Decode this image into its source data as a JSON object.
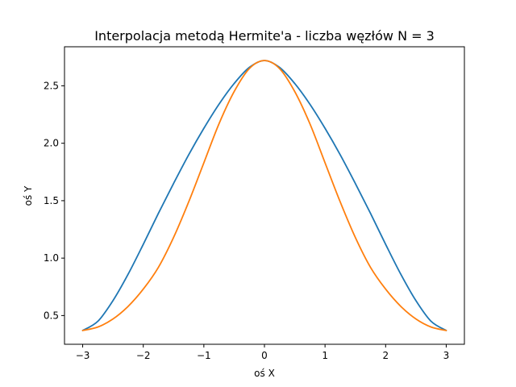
{
  "chart_data": {
    "type": "line",
    "title": "Interpolacja metodą Hermite'a - liczba węzłów N = 3",
    "xlabel": "oś X",
    "ylabel": "oś Y",
    "xlim": [
      -3.3,
      3.3
    ],
    "ylim": [
      0.25,
      2.84
    ],
    "xticks": [
      {
        "value": -3,
        "label": "−3"
      },
      {
        "value": -2,
        "label": "−2"
      },
      {
        "value": -1,
        "label": "−1"
      },
      {
        "value": 0,
        "label": "0"
      },
      {
        "value": 1,
        "label": "1"
      },
      {
        "value": 2,
        "label": "2"
      },
      {
        "value": 3,
        "label": "3"
      }
    ],
    "yticks": [
      {
        "value": 0.5,
        "label": "0.5"
      },
      {
        "value": 1.0,
        "label": "1.0"
      },
      {
        "value": 1.5,
        "label": "1.5"
      },
      {
        "value": 2.0,
        "label": "2.0"
      },
      {
        "value": 2.5,
        "label": "2.5"
      }
    ],
    "grid": false,
    "legend": "none",
    "series": [
      {
        "color": "#1f77b4",
        "x": [
          -3,
          -2.75,
          -2.5,
          -2.25,
          -2,
          -1.75,
          -1.5,
          -1.25,
          -1,
          -0.75,
          -0.5,
          -0.25,
          0,
          0.25,
          0.5,
          0.75,
          1,
          1.25,
          1.5,
          1.75,
          2,
          2.25,
          2.5,
          2.75,
          3
        ],
        "y": [
          0.37,
          0.45,
          0.63,
          0.86,
          1.12,
          1.39,
          1.65,
          1.9,
          2.13,
          2.34,
          2.52,
          2.66,
          2.72,
          2.66,
          2.52,
          2.34,
          2.13,
          1.9,
          1.65,
          1.39,
          1.12,
          0.86,
          0.63,
          0.45,
          0.37
        ]
      },
      {
        "color": "#ff7f0e",
        "x": [
          -3,
          -2.75,
          -2.5,
          -2.25,
          -2,
          -1.75,
          -1.5,
          -1.25,
          -1,
          -0.75,
          -0.5,
          -0.25,
          0,
          0.25,
          0.5,
          0.75,
          1,
          1.25,
          1.5,
          1.75,
          2,
          2.25,
          2.5,
          2.75,
          3
        ],
        "y": [
          0.37,
          0.4,
          0.47,
          0.58,
          0.73,
          0.92,
          1.18,
          1.49,
          1.83,
          2.17,
          2.45,
          2.65,
          2.72,
          2.65,
          2.45,
          2.17,
          1.83,
          1.49,
          1.18,
          0.92,
          0.73,
          0.58,
          0.47,
          0.4,
          0.37
        ]
      }
    ]
  }
}
